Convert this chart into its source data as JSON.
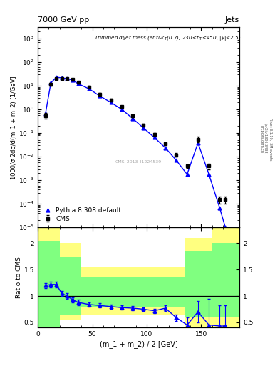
{
  "title_top": "7000 GeV pp",
  "title_right": "Jets",
  "annotation": "Trimmed dijet mass (anti-k$_T$(0.7), 230<p$_T$<450, |y|<2.5)",
  "cms_label": "CMS_2013_I1224539",
  "rivet_label": "Rivet 3.1.10,  3M events",
  "arxiv_label": "[arXiv:1306.3438]",
  "ylabel_main": "1000/σ 2dσ/d(m_1 + m_2) [1/GeV]",
  "ylabel_ratio": "Ratio to CMS",
  "xlabel": "(m_1 + m_2) / 2 [GeV]",
  "xlim": [
    0,
    185
  ],
  "ylim_main": [
    1e-05,
    3000
  ],
  "ylim_ratio": [
    0.4,
    2.3
  ],
  "cms_x": [
    7,
    12,
    17,
    22,
    27,
    32,
    37,
    47,
    57,
    67,
    77,
    87,
    97,
    107,
    117,
    127,
    137,
    147,
    157,
    167,
    172
  ],
  "cms_y": [
    0.55,
    11.5,
    20,
    21,
    20,
    19,
    14,
    9,
    4.5,
    2.5,
    1.3,
    0.55,
    0.22,
    0.09,
    0.035,
    0.012,
    0.004,
    0.055,
    0.004,
    0.00015,
    0.00015
  ],
  "cms_yerr": [
    0.15,
    1.5,
    2.5,
    2.5,
    2.0,
    2.0,
    1.5,
    1.0,
    0.5,
    0.3,
    0.15,
    0.07,
    0.03,
    0.012,
    0.005,
    0.002,
    0.0006,
    0.015,
    0.001,
    5e-05,
    5e-05
  ],
  "pythia_x": [
    7,
    12,
    17,
    22,
    27,
    32,
    37,
    47,
    57,
    67,
    77,
    87,
    97,
    107,
    117,
    127,
    137,
    147,
    157,
    167,
    172
  ],
  "pythia_y": [
    0.65,
    13.5,
    23,
    22,
    20,
    17.5,
    12.3,
    7.5,
    3.7,
    2.0,
    1.02,
    0.42,
    0.165,
    0.065,
    0.024,
    0.0071,
    0.0018,
    0.0385,
    0.0018,
    6.5e-05,
    1.05e-05
  ],
  "ratio_x": [
    7,
    12,
    17,
    22,
    27,
    32,
    37,
    47,
    57,
    67,
    77,
    87,
    97,
    107,
    117,
    127,
    137,
    147,
    157,
    167,
    172
  ],
  "ratio_y": [
    1.2,
    1.22,
    1.22,
    1.05,
    1.0,
    0.93,
    0.88,
    0.84,
    0.82,
    0.8,
    0.78,
    0.77,
    0.75,
    0.72,
    0.77,
    0.59,
    0.45,
    0.7,
    0.45,
    0.43,
    0.43
  ],
  "ratio_yerr_lo": [
    0.05,
    0.05,
    0.05,
    0.05,
    0.05,
    0.05,
    0.05,
    0.04,
    0.04,
    0.04,
    0.04,
    0.04,
    0.04,
    0.04,
    0.05,
    0.06,
    0.15,
    0.2,
    0.3,
    0.4,
    0.4
  ],
  "ratio_yerr_hi": [
    0.05,
    0.05,
    0.05,
    0.05,
    0.05,
    0.05,
    0.05,
    0.04,
    0.04,
    0.04,
    0.04,
    0.04,
    0.04,
    0.04,
    0.05,
    0.06,
    0.15,
    0.2,
    0.5,
    0.4,
    0.4
  ],
  "yellow_edges": [
    0,
    20,
    40,
    135,
    160,
    185
  ],
  "yellow_lo": [
    0.4,
    0.55,
    0.65,
    0.4,
    0.4,
    0.4
  ],
  "yellow_hi": [
    2.3,
    2.0,
    1.55,
    2.1,
    2.3,
    2.3
  ],
  "green_edges": [
    0,
    20,
    40,
    135,
    160,
    185
  ],
  "green_lo": [
    0.4,
    0.65,
    0.78,
    0.6,
    0.6,
    0.6
  ],
  "green_hi": [
    2.05,
    1.75,
    1.35,
    1.85,
    2.0,
    2.0
  ],
  "color_cms": "black",
  "color_pythia": "blue",
  "color_yellow": "#ffff80",
  "color_green": "#80ff80",
  "background_color": "white"
}
